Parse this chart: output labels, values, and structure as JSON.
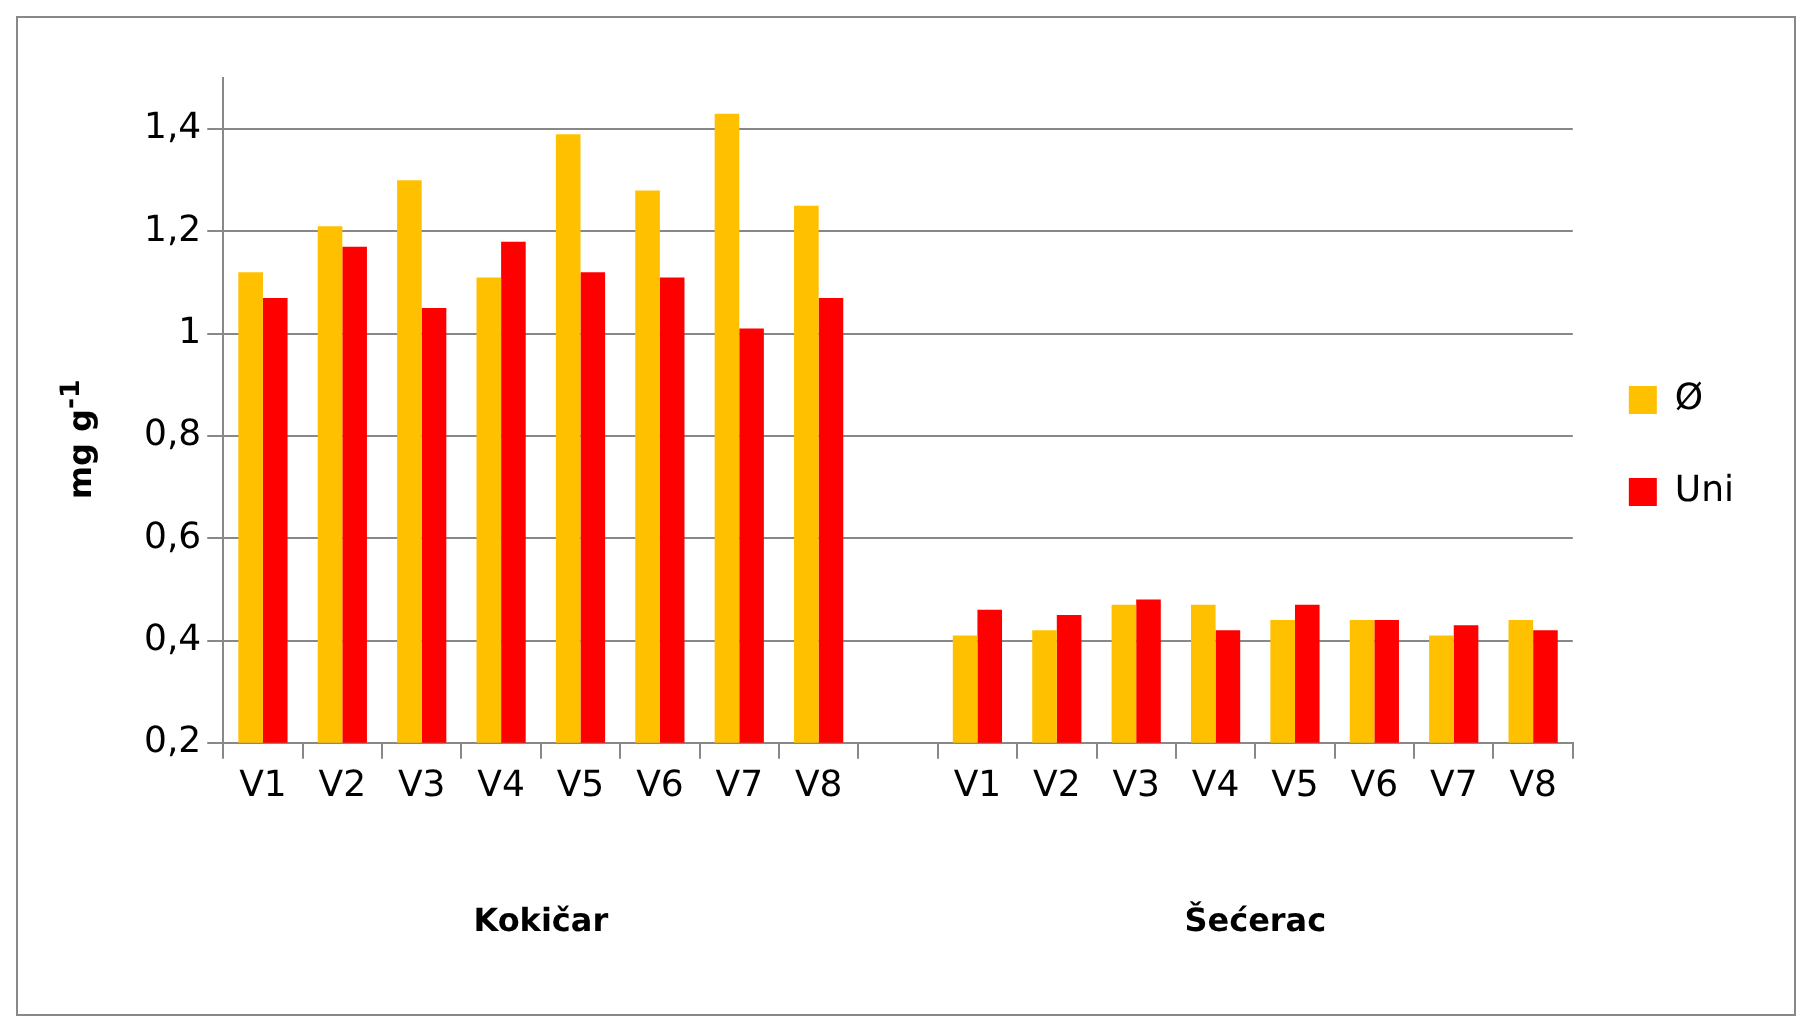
{
  "chart_data": {
    "type": "bar",
    "ylabel": "mg g$^{-1}$",
    "categories": [
      "V1",
      "V2",
      "V3",
      "V4",
      "V5",
      "V6",
      "V7",
      "V8",
      null,
      "V1",
      "V2",
      "V3",
      "V4",
      "V5",
      "V6",
      "V7",
      "V8"
    ],
    "series": [
      {
        "name": "Ø",
        "color": "#ffc000",
        "values": [
          1.12,
          1.21,
          1.3,
          1.11,
          1.39,
          1.28,
          1.43,
          1.25,
          null,
          0.41,
          0.42,
          0.47,
          0.47,
          0.44,
          0.44,
          0.41,
          0.44
        ]
      },
      {
        "name": "Uni",
        "color": "#ff0000",
        "values": [
          1.07,
          1.17,
          1.05,
          1.18,
          1.12,
          1.11,
          1.01,
          1.07,
          null,
          0.46,
          0.45,
          0.48,
          0.42,
          0.47,
          0.44,
          0.43,
          0.42
        ]
      }
    ],
    "ylim": [
      0.2,
      1.5
    ],
    "yticks": [
      {
        "value": 0.2,
        "label": "0,2"
      },
      {
        "value": 0.4,
        "label": "0,4"
      },
      {
        "value": 0.6,
        "label": "0,6"
      },
      {
        "value": 0.8,
        "label": "0,8"
      },
      1,
      {
        "value": 1.2,
        "label": "1,2"
      },
      {
        "value": 1.4,
        "label": "1,4"
      }
    ],
    "grid": "y",
    "legend": "right",
    "annotations": [
      "Kokičar",
      "Šećerac"
    ]
  }
}
